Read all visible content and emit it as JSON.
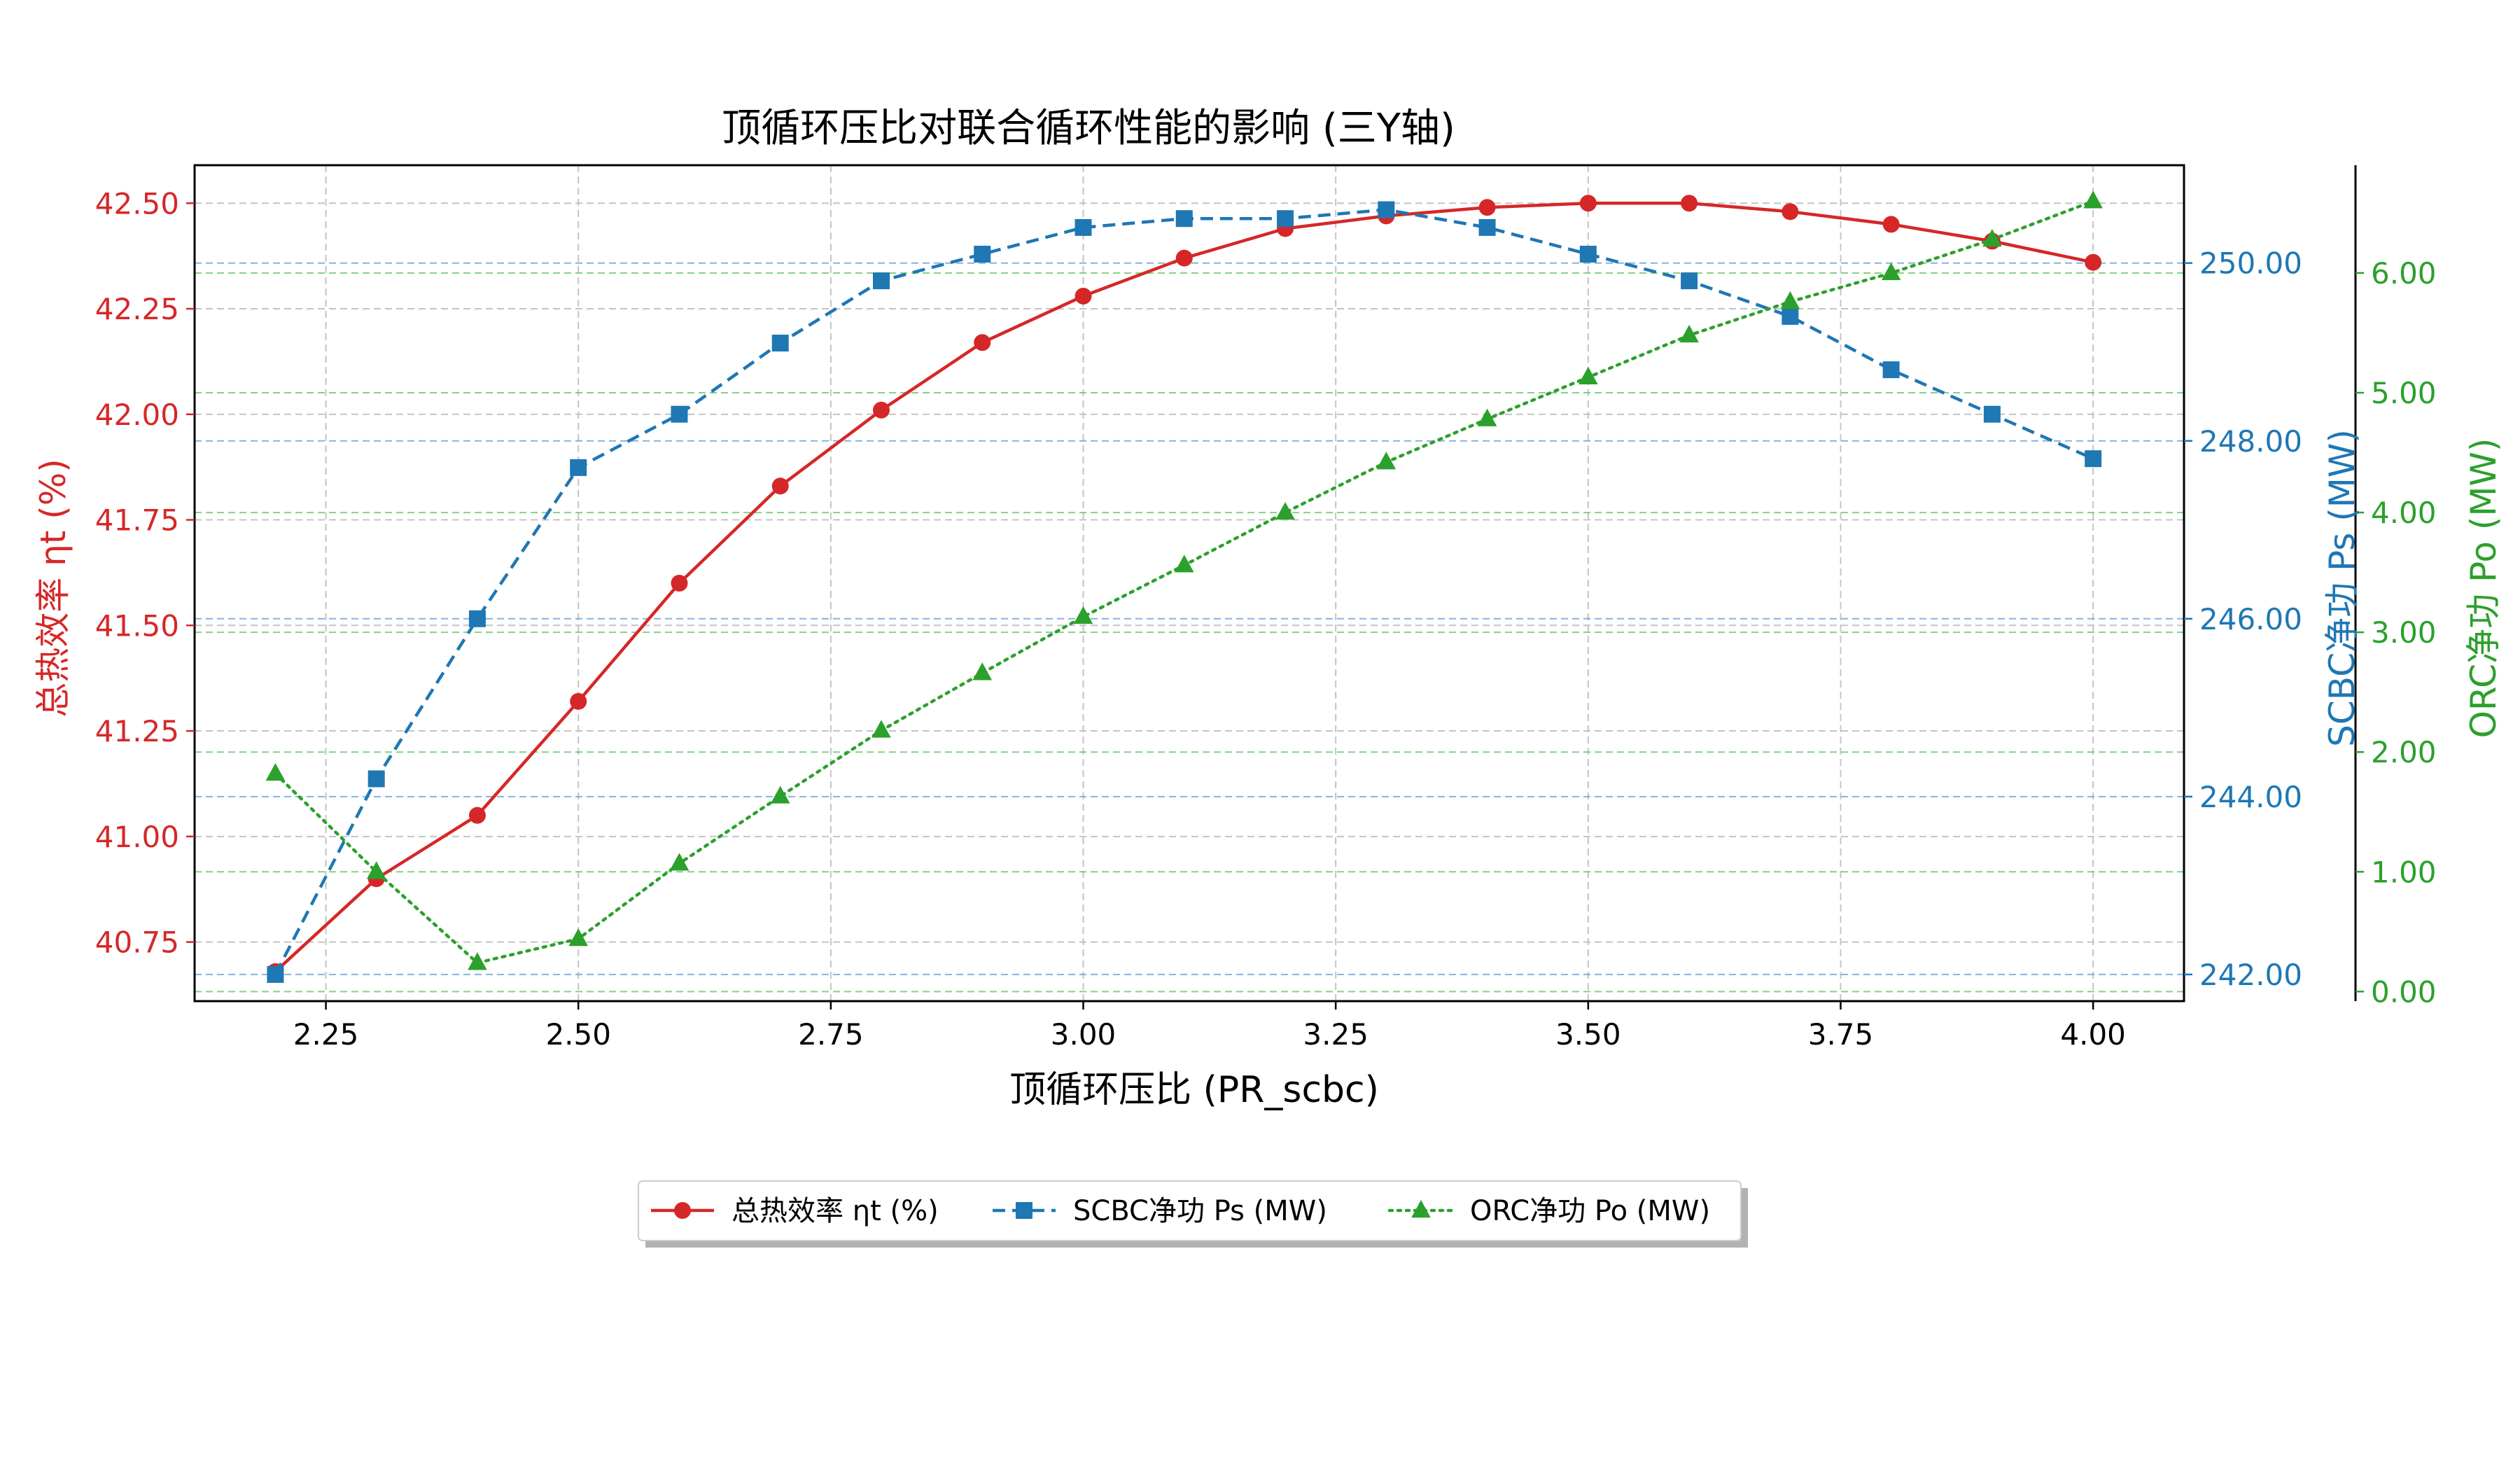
{
  "chart_data": {
    "type": "line",
    "title": "顶循环压比对联合循环性能的影响 (三Y轴)",
    "xlabel": "顶循环压比 (PR_scbc)",
    "xlim": [
      2.12,
      4.09
    ],
    "xticks": [
      2.25,
      2.5,
      2.75,
      3.0,
      3.25,
      3.5,
      3.75,
      4.0
    ],
    "x": [
      2.2,
      2.3,
      2.4,
      2.5,
      2.6,
      2.7,
      2.8,
      2.9,
      3.0,
      3.1,
      3.2,
      3.3,
      3.4,
      3.5,
      3.6,
      3.7,
      3.8,
      3.9,
      4.0
    ],
    "grid": true,
    "legend_position": "bottom-center",
    "axes": [
      {
        "id": "y1",
        "side": "left",
        "label": "总热效率 ηt (%)",
        "color": "#d62728",
        "ylim": [
          40.61,
          42.59
        ],
        "ticks": [
          40.75,
          41.0,
          41.25,
          41.5,
          41.75,
          42.0,
          42.25,
          42.5
        ]
      },
      {
        "id": "y2",
        "side": "right",
        "label": "SCBC净功 Ps (MW)",
        "color": "#1f77b4",
        "ylim": [
          241.7,
          251.1
        ],
        "ticks": [
          242.0,
          244.0,
          246.0,
          248.0,
          250.0
        ]
      },
      {
        "id": "y3",
        "side": "right-outer",
        "label": "ORC净功 Po (MW)",
        "color": "#2ca02c",
        "ylim": [
          -0.08,
          6.9
        ],
        "ticks": [
          0.0,
          1.0,
          2.0,
          3.0,
          4.0,
          5.0,
          6.0
        ]
      }
    ],
    "series": [
      {
        "name": "总热效率 ηt (%)",
        "axis": "y1",
        "color": "#d62728",
        "dash": "solid",
        "marker": "circle",
        "values": [
          40.68,
          40.9,
          41.05,
          41.32,
          41.6,
          41.83,
          42.01,
          42.17,
          42.28,
          42.37,
          42.44,
          42.47,
          42.49,
          42.5,
          42.5,
          42.48,
          42.45,
          42.41,
          42.36
        ]
      },
      {
        "name": "SCBC净功 Ps (MW)",
        "axis": "y2",
        "color": "#1f77b4",
        "dash": "dashed",
        "marker": "square",
        "values": [
          242.0,
          244.2,
          246.0,
          247.7,
          248.3,
          249.1,
          249.8,
          250.1,
          250.4,
          250.5,
          250.5,
          250.6,
          250.4,
          250.1,
          249.8,
          249.4,
          248.8,
          248.3,
          247.8
        ]
      },
      {
        "name": "ORC净功 Po (MW)",
        "axis": "y3",
        "color": "#2ca02c",
        "dash": "dotted",
        "marker": "triangle",
        "values": [
          1.82,
          1.0,
          0.24,
          0.44,
          1.07,
          1.63,
          2.18,
          2.66,
          3.13,
          3.56,
          4.0,
          4.42,
          4.78,
          5.13,
          5.48,
          5.76,
          6.0,
          6.28,
          6.6
        ]
      }
    ]
  }
}
